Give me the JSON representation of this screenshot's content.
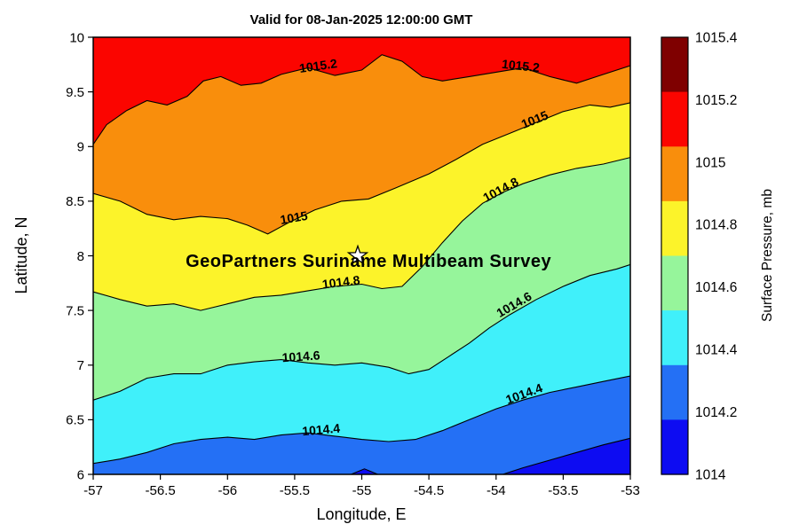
{
  "chart_data": {
    "type": "contour",
    "title": "Valid for 08-Jan-2025 12:00:00 GMT",
    "xlabel": "Longitude, E",
    "ylabel": "Latitude, N",
    "xlim": [
      -57,
      -53
    ],
    "ylim": [
      6,
      10
    ],
    "x_tick_labels": [
      "-57",
      "-56.5",
      "-56",
      "-55.5",
      "-55",
      "-54.5",
      "-54",
      "-53.5",
      "-53"
    ],
    "y_tick_labels": [
      "6",
      "6.5",
      "7",
      "7.5",
      "8",
      "8.5",
      "9",
      "9.5",
      "10"
    ],
    "grid": false,
    "background_band": {
      "level": "1015.2-1015.4",
      "color": "#fb0500"
    },
    "contours": [
      {
        "level": "1015.2",
        "fill_below": "#f98e0c",
        "line": [
          [
            -57,
            9.02
          ],
          [
            -56.9,
            9.2
          ],
          [
            -56.75,
            9.33
          ],
          [
            -56.6,
            9.42
          ],
          [
            -56.45,
            9.38
          ],
          [
            -56.3,
            9.46
          ],
          [
            -56.18,
            9.6
          ],
          [
            -56.05,
            9.64
          ],
          [
            -55.9,
            9.56
          ],
          [
            -55.75,
            9.58
          ],
          [
            -55.6,
            9.66
          ],
          [
            -55.4,
            9.72
          ],
          [
            -55.2,
            9.65
          ],
          [
            -55,
            9.7
          ],
          [
            -54.85,
            9.84
          ],
          [
            -54.7,
            9.78
          ],
          [
            -54.55,
            9.64
          ],
          [
            -54.4,
            9.6
          ],
          [
            -54.2,
            9.64
          ],
          [
            -54,
            9.68
          ],
          [
            -53.8,
            9.72
          ],
          [
            -53.6,
            9.64
          ],
          [
            -53.4,
            9.58
          ],
          [
            -53.2,
            9.66
          ],
          [
            -53,
            9.74
          ]
        ]
      },
      {
        "level": "1015",
        "fill_below": "#fcf32a",
        "line": [
          [
            -57,
            8.57
          ],
          [
            -56.8,
            8.5
          ],
          [
            -56.6,
            8.38
          ],
          [
            -56.4,
            8.33
          ],
          [
            -56.2,
            8.36
          ],
          [
            -56,
            8.34
          ],
          [
            -55.85,
            8.28
          ],
          [
            -55.7,
            8.2
          ],
          [
            -55.55,
            8.3
          ],
          [
            -55.35,
            8.42
          ],
          [
            -55.15,
            8.5
          ],
          [
            -54.95,
            8.52
          ],
          [
            -54.75,
            8.62
          ],
          [
            -54.5,
            8.75
          ],
          [
            -54.3,
            8.88
          ],
          [
            -54.1,
            9.02
          ],
          [
            -53.9,
            9.12
          ],
          [
            -53.7,
            9.22
          ],
          [
            -53.5,
            9.32
          ],
          [
            -53.3,
            9.38
          ],
          [
            -53.15,
            9.36
          ],
          [
            -53,
            9.4
          ]
        ]
      },
      {
        "level": "1014.8",
        "fill_below": "#96f59b",
        "line": [
          [
            -57,
            7.67
          ],
          [
            -56.8,
            7.6
          ],
          [
            -56.6,
            7.54
          ],
          [
            -56.4,
            7.56
          ],
          [
            -56.2,
            7.5
          ],
          [
            -56,
            7.56
          ],
          [
            -55.8,
            7.62
          ],
          [
            -55.6,
            7.64
          ],
          [
            -55.4,
            7.68
          ],
          [
            -55.2,
            7.72
          ],
          [
            -55,
            7.74
          ],
          [
            -54.85,
            7.7
          ],
          [
            -54.7,
            7.72
          ],
          [
            -54.55,
            7.9
          ],
          [
            -54.4,
            8.12
          ],
          [
            -54.25,
            8.32
          ],
          [
            -54.1,
            8.48
          ],
          [
            -53.95,
            8.58
          ],
          [
            -53.8,
            8.66
          ],
          [
            -53.6,
            8.74
          ],
          [
            -53.4,
            8.8
          ],
          [
            -53.2,
            8.84
          ],
          [
            -53,
            8.9
          ]
        ]
      },
      {
        "level": "1014.6",
        "fill_below": "#40f0fa",
        "line": [
          [
            -57,
            6.68
          ],
          [
            -56.8,
            6.76
          ],
          [
            -56.6,
            6.88
          ],
          [
            -56.4,
            6.92
          ],
          [
            -56.2,
            6.92
          ],
          [
            -56,
            7
          ],
          [
            -55.8,
            7.03
          ],
          [
            -55.6,
            7.05
          ],
          [
            -55.4,
            7.02
          ],
          [
            -55.2,
            7
          ],
          [
            -55,
            7.02
          ],
          [
            -54.8,
            6.98
          ],
          [
            -54.65,
            6.92
          ],
          [
            -54.5,
            6.96
          ],
          [
            -54.35,
            7.08
          ],
          [
            -54.2,
            7.2
          ],
          [
            -54.05,
            7.34
          ],
          [
            -53.9,
            7.46
          ],
          [
            -53.7,
            7.6
          ],
          [
            -53.5,
            7.72
          ],
          [
            -53.3,
            7.82
          ],
          [
            -53.1,
            7.88
          ],
          [
            -53,
            7.92
          ]
        ]
      },
      {
        "level": "1014.4",
        "fill_below": "#2470f5",
        "line": [
          [
            -57,
            6.1
          ],
          [
            -56.8,
            6.14
          ],
          [
            -56.6,
            6.2
          ],
          [
            -56.4,
            6.28
          ],
          [
            -56.2,
            6.32
          ],
          [
            -56,
            6.34
          ],
          [
            -55.8,
            6.32
          ],
          [
            -55.6,
            6.36
          ],
          [
            -55.4,
            6.38
          ],
          [
            -55.2,
            6.35
          ],
          [
            -55,
            6.32
          ],
          [
            -54.8,
            6.3
          ],
          [
            -54.6,
            6.32
          ],
          [
            -54.4,
            6.4
          ],
          [
            -54.2,
            6.5
          ],
          [
            -54,
            6.6
          ],
          [
            -53.8,
            6.68
          ],
          [
            -53.6,
            6.75
          ],
          [
            -53.4,
            6.8
          ],
          [
            -53.2,
            6.85
          ],
          [
            -53,
            6.9
          ]
        ]
      },
      {
        "level": "1014.2",
        "fill_below": "#0d0cf2",
        "line": [
          [
            -53.95,
            6
          ],
          [
            -53.8,
            6.06
          ],
          [
            -53.6,
            6.13
          ],
          [
            -53.4,
            6.2
          ],
          [
            -53.2,
            6.27
          ],
          [
            -53,
            6.33
          ]
        ],
        "close": [
          [
            -53,
            6
          ]
        ]
      },
      {
        "level": "1014.2",
        "fill_below": "#0d0cf2",
        "line": [
          [
            -55.08,
            6
          ],
          [
            -54.98,
            6.05
          ],
          [
            -54.88,
            6
          ]
        ],
        "close": []
      }
    ],
    "contour_labels": [
      {
        "text": "1015.2",
        "lon": -55.32,
        "lat": 9.7,
        "rot": -8
      },
      {
        "text": "1015.2",
        "lon": -53.82,
        "lat": 9.7,
        "rot": 6
      },
      {
        "text": "1015",
        "lon": -55.5,
        "lat": 8.31,
        "rot": -10
      },
      {
        "text": "1015",
        "lon": -53.7,
        "lat": 9.21,
        "rot": -22
      },
      {
        "text": "1014.8",
        "lon": -55.15,
        "lat": 7.72,
        "rot": -7
      },
      {
        "text": "1014.8",
        "lon": -53.95,
        "lat": 8.57,
        "rot": -28
      },
      {
        "text": "1014.6",
        "lon": -55.45,
        "lat": 7.04,
        "rot": -4
      },
      {
        "text": "1014.6",
        "lon": -53.85,
        "lat": 7.52,
        "rot": -30
      },
      {
        "text": "1014.4",
        "lon": -55.3,
        "lat": 6.37,
        "rot": -5
      },
      {
        "text": "1014.4",
        "lon": -53.78,
        "lat": 6.7,
        "rot": -20
      }
    ],
    "marker": {
      "shape": "pentagram",
      "lon": -55.03,
      "lat": 8.0,
      "fill": "#ffffff",
      "outer_radius": 11,
      "inner_radius": 4.4
    },
    "annotation": {
      "text": "GeoPartners Suriname Multibeam Survey",
      "lon": -54.95,
      "lat": 7.9
    },
    "colorbar": {
      "label": "Surface Pressure, mb",
      "tick_labels": [
        "1015.4",
        "1015.2",
        "1015",
        "1014.8",
        "1014.6",
        "1014.4",
        "1014.2",
        "1014"
      ],
      "band_colors_top_to_bottom": [
        "#7f0000",
        "#fb0500",
        "#f98e0c",
        "#fcf32a",
        "#96f59b",
        "#40f0fa",
        "#2470f5",
        "#0d0cf2"
      ]
    }
  }
}
